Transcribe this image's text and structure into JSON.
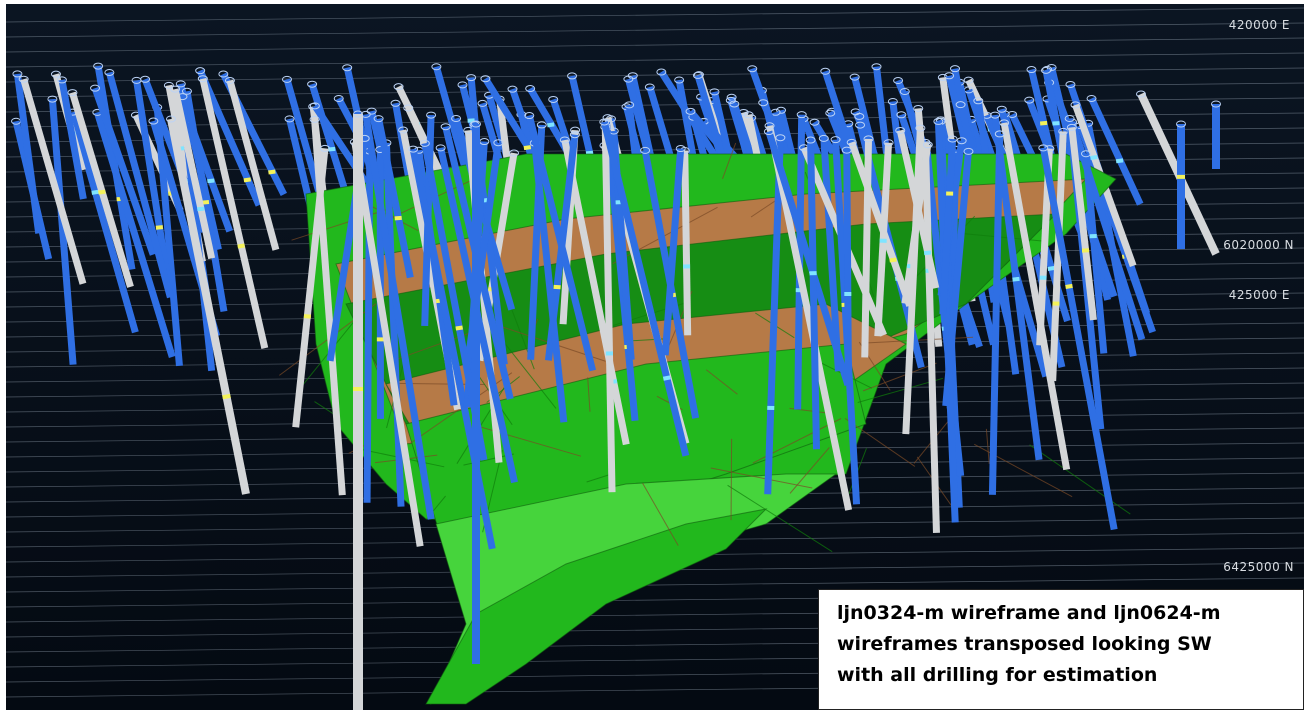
{
  "scene": {
    "background_top": "#0b1522",
    "background_bottom": "#040a12",
    "grid_line_color": "#8d99a8",
    "drill_colors": {
      "blue": "#2f6fe4",
      "white": "#d4d6d8",
      "collar": "#bcd3f5"
    },
    "wireframe_colors": {
      "green": "#22b81d",
      "green_dark": "#168d14",
      "green_light": "#46d43c",
      "brown": "#b67a47"
    }
  },
  "coordinates": {
    "easting_top": "420000 E",
    "northing_mid": "6020000 N",
    "easting_mid": "425000 E",
    "northing_low": "6425000 N"
  },
  "caption": {
    "text": "ljn0324-m wireframe and ljn0624-m\nwireframes transposed looking SW\nwith all drilling for estimation"
  }
}
